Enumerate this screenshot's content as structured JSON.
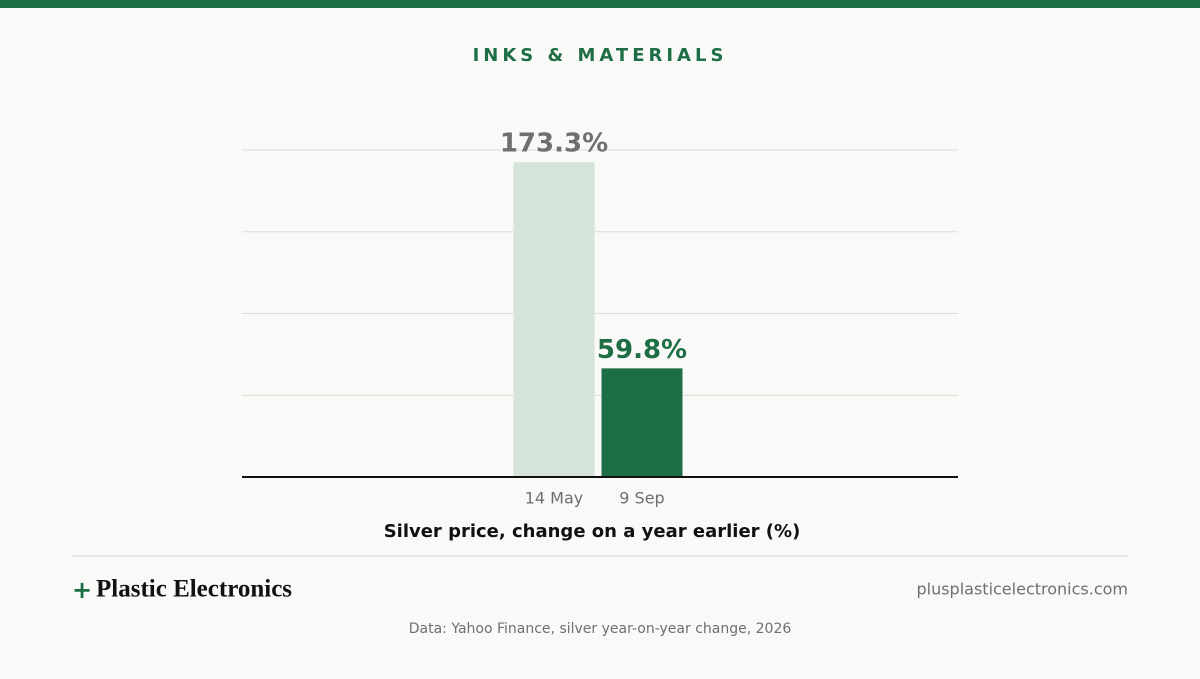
{
  "header": {
    "section": "INKS & MATERIALS"
  },
  "chart_data": {
    "type": "bar",
    "categories": [
      "14 May",
      "9 Sep"
    ],
    "values": [
      173.3,
      59.8
    ],
    "value_labels": [
      "173.3%",
      "59.8%"
    ],
    "colors": [
      "#d4e4d9",
      "#1e6e45"
    ],
    "value_label_colors": [
      "#6f6f6f",
      "#1e6e45"
    ],
    "x_label": "Silver price, change on a year earlier (%)",
    "ylim": [
      0,
      180
    ],
    "yticks": [
      0,
      45,
      90,
      135,
      180
    ],
    "grid": true
  },
  "footer": {
    "brand_mark": "+",
    "brand_name": "Plastic Electronics",
    "url": "plusplasticelectronics.com",
    "source": "Data: Yahoo Finance, silver year-on-year change, 2026"
  }
}
